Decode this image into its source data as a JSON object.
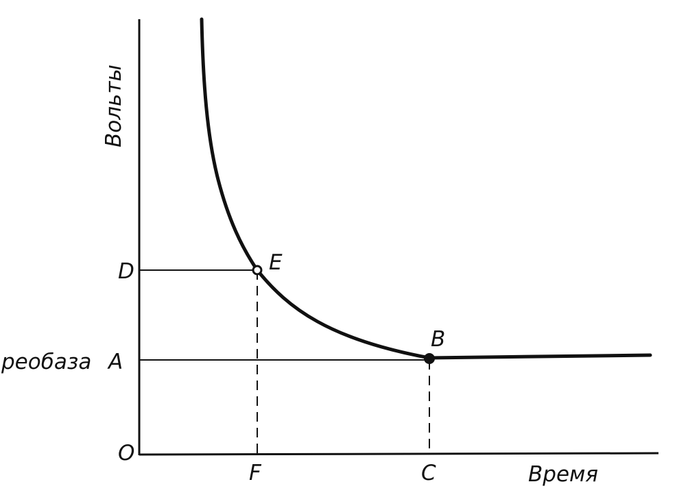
{
  "chart_data": {
    "type": "line",
    "title": "",
    "xlabel": "Время",
    "ylabel": "Вольты",
    "grid": false,
    "legend": "none",
    "axis_ticks": {
      "x_origin": "O",
      "y_marks": [
        {
          "id": "D",
          "label": "D"
        },
        {
          "id": "A",
          "label": "A",
          "prefix": "реобаза"
        }
      ],
      "x_marks": [
        {
          "id": "F",
          "label": "F"
        },
        {
          "id": "C",
          "label": "C"
        }
      ]
    },
    "points": [
      {
        "id": "E",
        "label": "E"
      },
      {
        "id": "B",
        "label": "B"
      }
    ],
    "colors": {
      "ink": "#111111",
      "paper": "#ffffff"
    }
  }
}
